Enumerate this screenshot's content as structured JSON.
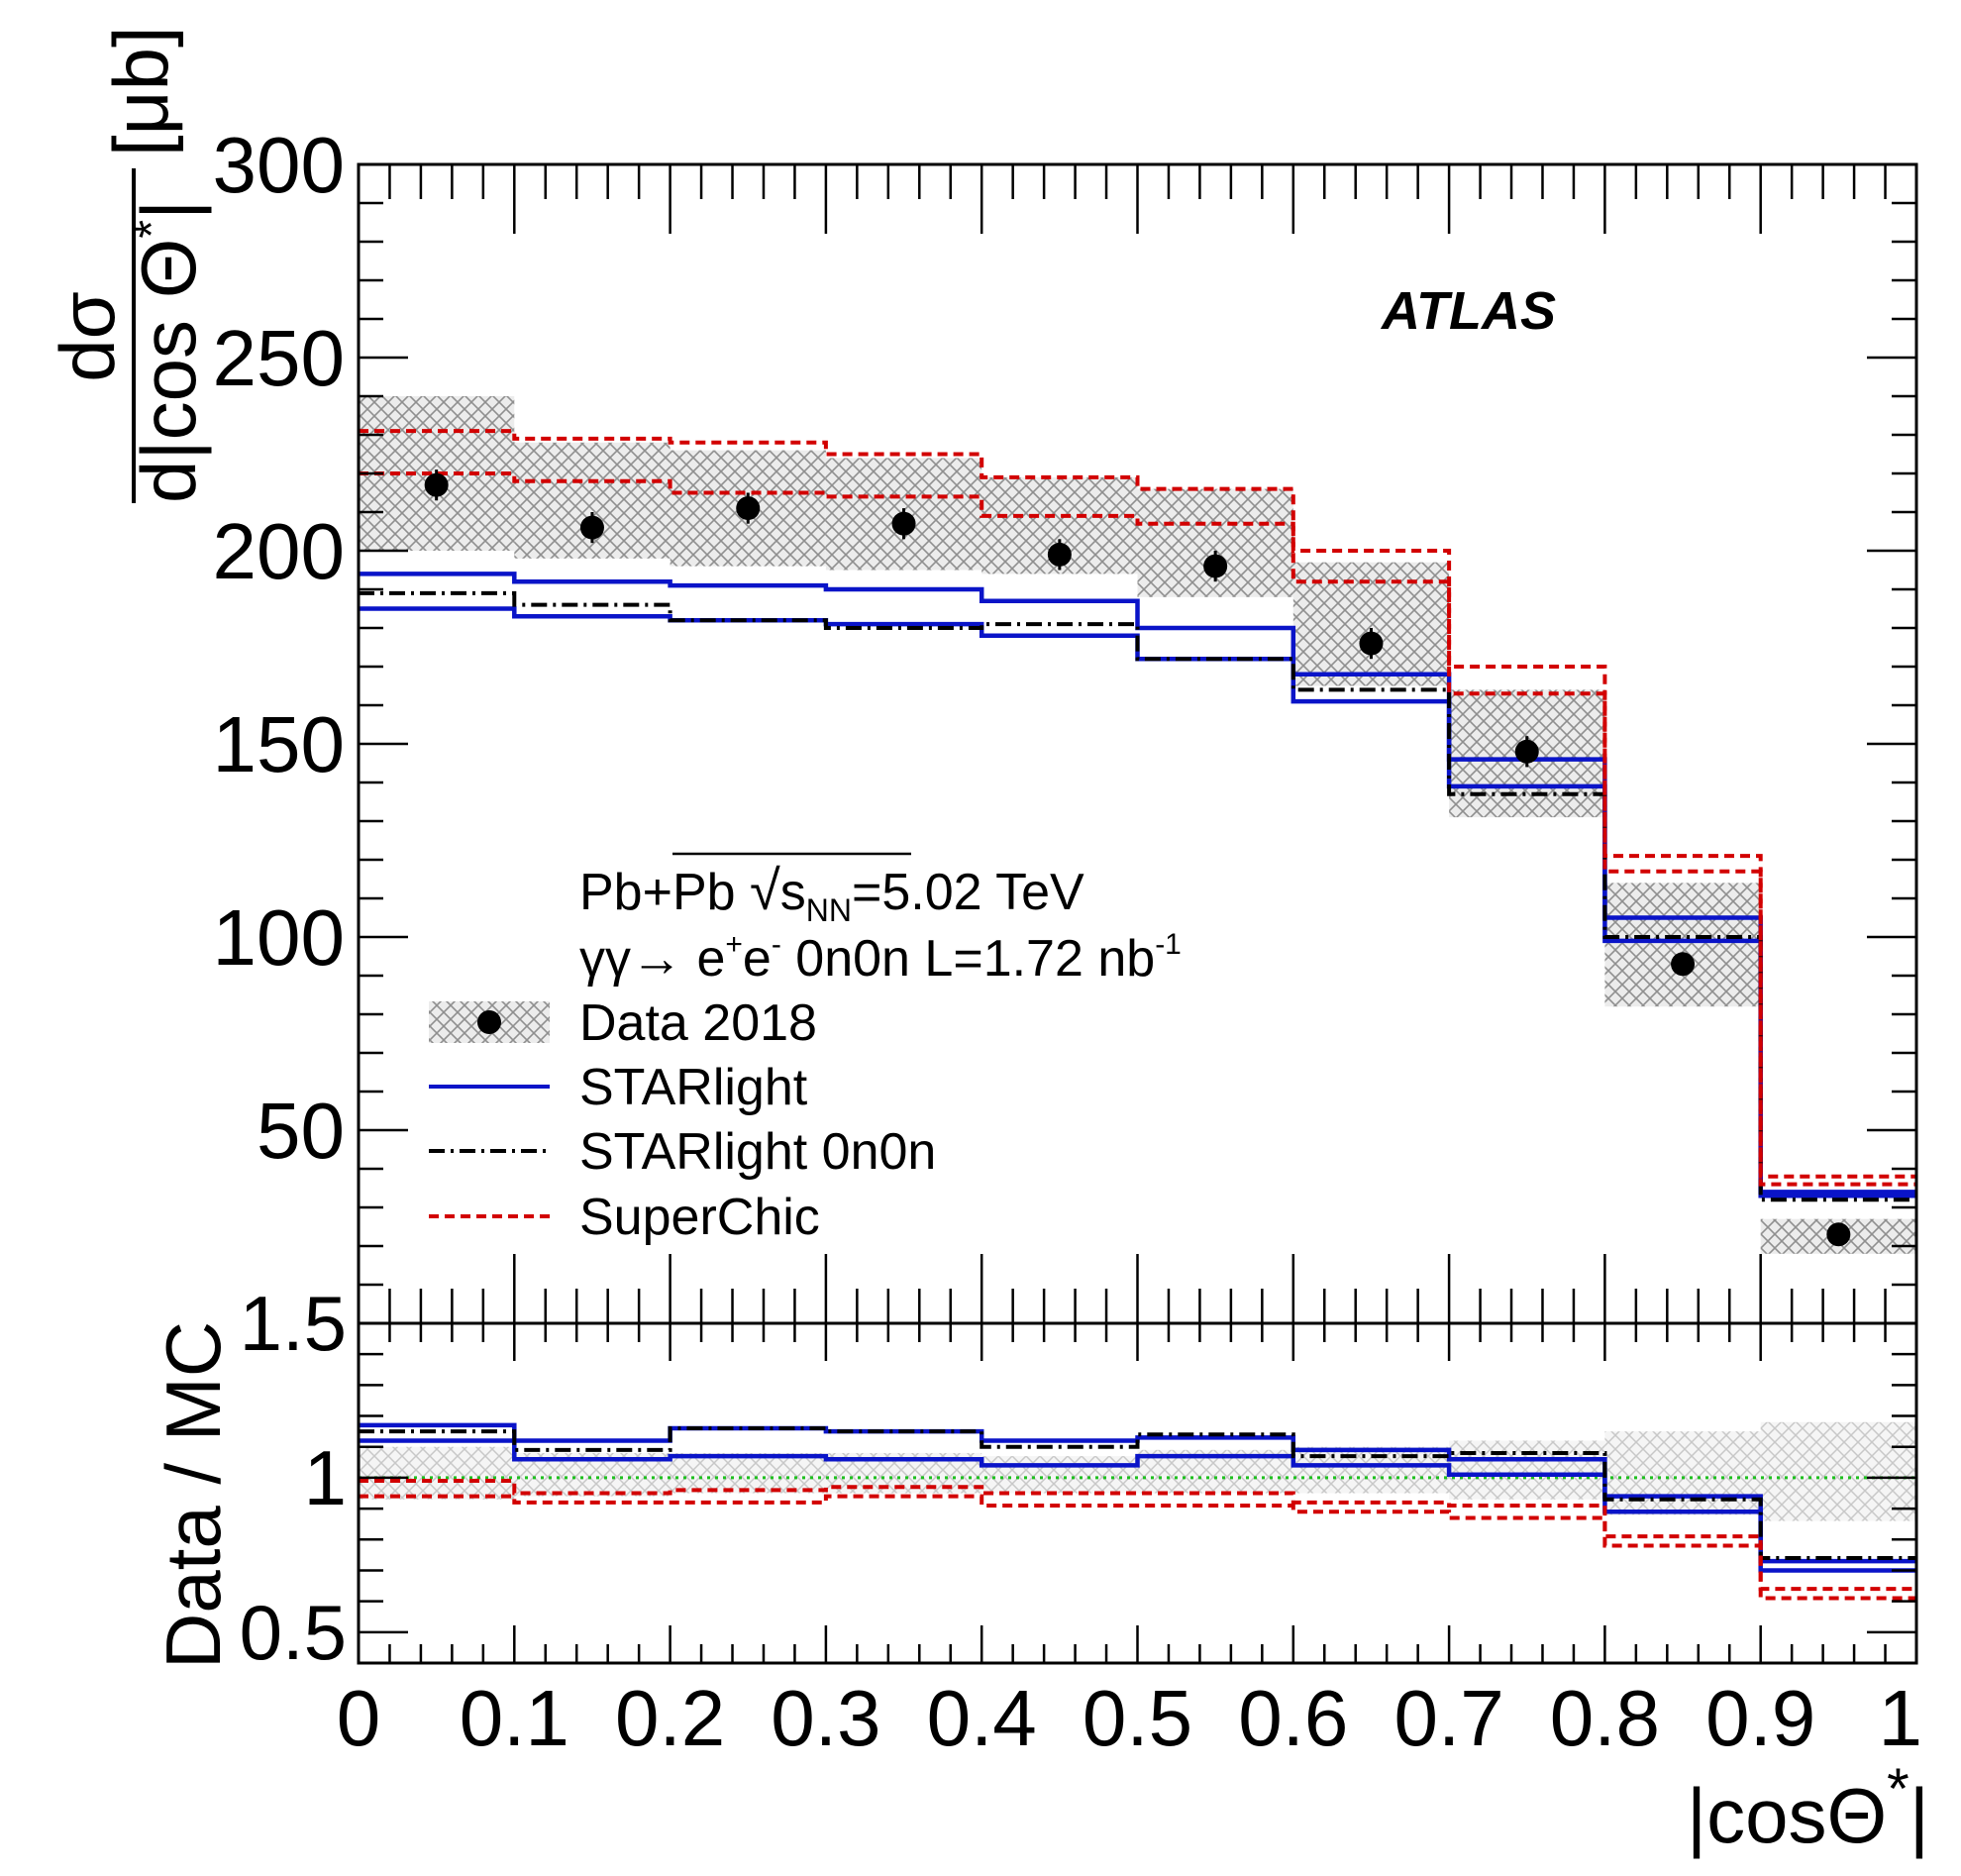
{
  "chart_data": [
    {
      "type": "step-histogram",
      "panel": "top",
      "experiment_label": "ATLAS",
      "ylabel": {
        "numerator": "dσ",
        "denominator_prefix": "d|cos ",
        "theta": "Θ",
        "star": "*",
        "denominator_suffix": "|",
        "unit": "[μb]"
      },
      "ylim": [
        0,
        300
      ],
      "yticks": [
        50,
        100,
        150,
        200,
        250,
        300
      ],
      "ytick_labels": [
        "50",
        "100",
        "150",
        "200",
        "250",
        "300"
      ],
      "bin_edges": [
        0,
        0.1,
        0.2,
        0.3,
        0.4,
        0.5,
        0.6,
        0.7,
        0.8,
        0.9,
        1.0
      ],
      "annotations": {
        "line1_prefix": "Pb+Pb ",
        "line1_sqrt": "√",
        "line1_s": "s",
        "line1_sub": "NN",
        "line1_suffix": "=5.02 TeV",
        "line2_prefix": "γγ→ e",
        "line2_sup1": "+",
        "line2_mid": "e",
        "line2_sup2": "-",
        "line2_suffix": " 0n0n L=1.72 nb",
        "line2_sup3": "-1"
      },
      "legend": [
        {
          "key": "data",
          "label": "Data 2018"
        },
        {
          "key": "starlight",
          "label": "STARlight"
        },
        {
          "key": "starlight0n0n",
          "label": "STARlight 0n0n"
        },
        {
          "key": "superchic",
          "label": "SuperChic"
        }
      ],
      "series": [
        {
          "name": "Data 2018",
          "type": "points",
          "x": [
            0.05,
            0.15,
            0.25,
            0.35,
            0.45,
            0.55,
            0.65,
            0.75,
            0.85,
            0.95
          ],
          "values": [
            217,
            206,
            211,
            207,
            199,
            196,
            176,
            148,
            93,
            23
          ],
          "stat_err": [
            4,
            4,
            4,
            4,
            4,
            4,
            4,
            4,
            3,
            2
          ],
          "syst_band": [
            [
              200,
              240
            ],
            [
              198,
              228
            ],
            [
              196,
              226
            ],
            [
              195,
              224
            ],
            [
              194,
              219
            ],
            [
              188,
              216
            ],
            [
              165,
              197
            ],
            [
              131,
              164
            ],
            [
              82,
              114
            ],
            [
              18,
              27
            ]
          ]
        },
        {
          "name": "STARlight",
          "type": "band",
          "color": "#0a14c8",
          "lower": [
            185,
            183,
            182,
            181,
            178,
            172,
            161,
            139,
            99,
            33
          ],
          "upper": [
            194,
            192,
            191,
            190,
            187,
            180,
            168,
            146,
            105,
            34
          ]
        },
        {
          "name": "STARlight 0n0n",
          "type": "step",
          "color": "#000000",
          "values": [
            189,
            186,
            182,
            180,
            181,
            172,
            164,
            137,
            100,
            32
          ]
        },
        {
          "name": "SuperChic",
          "type": "band",
          "color": "#d20000",
          "lower": [
            220,
            218,
            215,
            214,
            209,
            207,
            192,
            163,
            117,
            36
          ],
          "upper": [
            231,
            229,
            228,
            225,
            219,
            216,
            200,
            170,
            121,
            38
          ]
        }
      ]
    },
    {
      "type": "step-histogram",
      "panel": "ratio",
      "ylabel": "Data / MC",
      "ylim": [
        0.4,
        1.5
      ],
      "yticks": [
        0.5,
        1,
        1.5
      ],
      "ytick_labels": [
        "0.5",
        "1",
        "1.5"
      ],
      "xlabel": {
        "prefix": "|cos",
        "theta": "Θ",
        "star": "*",
        "suffix": "|"
      },
      "xlim": [
        0,
        1
      ],
      "xticks": [
        0,
        0.1,
        0.2,
        0.3,
        0.4,
        0.5,
        0.6,
        0.7,
        0.8,
        0.9,
        1
      ],
      "xtick_labels": [
        "0",
        "0.1",
        "0.2",
        "0.3",
        "0.4",
        "0.5",
        "0.6",
        "0.7",
        "0.8",
        "0.9",
        "1"
      ],
      "bin_edges": [
        0,
        0.1,
        0.2,
        0.3,
        0.4,
        0.5,
        0.6,
        0.7,
        0.8,
        0.9,
        1.0
      ],
      "reference_line": {
        "value": 1.0,
        "color": "#1fbf1f"
      },
      "series": [
        {
          "name": "Data uncertainty",
          "type": "hatch-band",
          "lower": [
            0.93,
            0.94,
            0.95,
            0.95,
            0.95,
            0.95,
            0.95,
            0.93,
            0.88,
            0.86
          ],
          "upper": [
            1.1,
            1.08,
            1.08,
            1.08,
            1.07,
            1.09,
            1.1,
            1.12,
            1.15,
            1.18
          ]
        },
        {
          "name": "STARlight",
          "type": "band",
          "color": "#0a14c8",
          "lower": [
            1.12,
            1.06,
            1.07,
            1.06,
            1.04,
            1.07,
            1.04,
            1.01,
            0.89,
            0.7
          ],
          "upper": [
            1.17,
            1.12,
            1.16,
            1.15,
            1.12,
            1.13,
            1.09,
            1.06,
            0.94,
            0.73
          ]
        },
        {
          "name": "STARlight 0n0n",
          "type": "step",
          "color": "#000000",
          "values": [
            1.15,
            1.09,
            1.16,
            1.15,
            1.1,
            1.14,
            1.07,
            1.08,
            0.93,
            0.74
          ]
        },
        {
          "name": "SuperChic",
          "type": "band",
          "color": "#d20000",
          "lower": [
            0.94,
            0.92,
            0.92,
            0.94,
            0.91,
            0.91,
            0.89,
            0.87,
            0.78,
            0.61
          ],
          "upper": [
            0.99,
            0.95,
            0.96,
            0.97,
            0.95,
            0.95,
            0.92,
            0.91,
            0.81,
            0.64
          ]
        }
      ]
    }
  ]
}
